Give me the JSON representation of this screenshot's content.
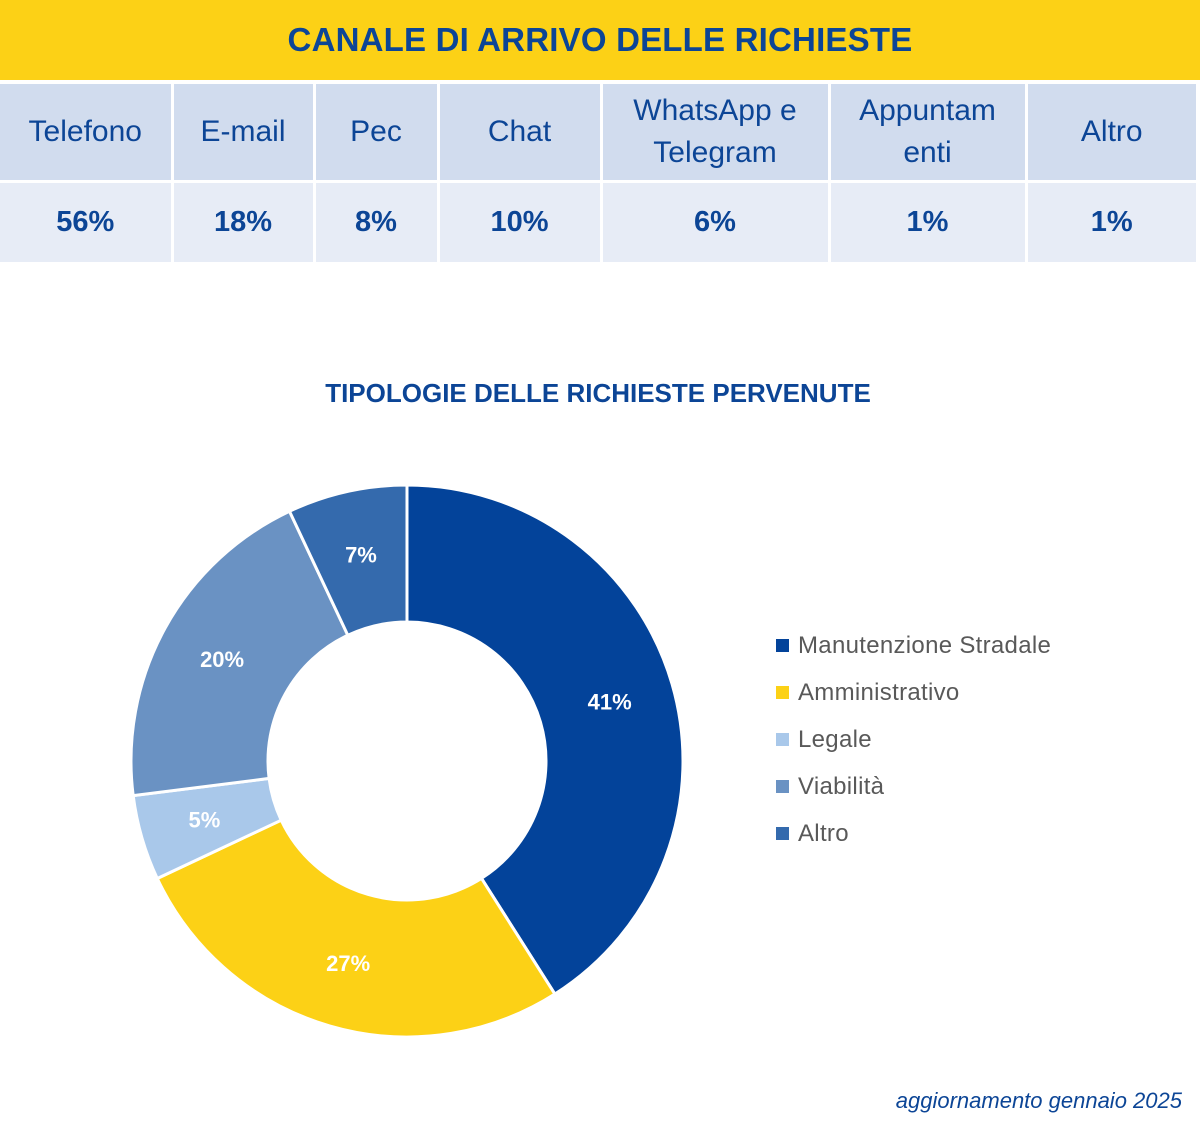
{
  "banner": {
    "title": "CANALE DI ARRIVO DELLE RICHIESTE"
  },
  "channels_table": {
    "headers": [
      "Telefono",
      "E-mail",
      "Pec",
      "Chat",
      "WhatsApp e Telegram",
      "Appuntam enti",
      "Altro"
    ],
    "values": [
      "56%",
      "18%",
      "8%",
      "10%",
      "6%",
      "1%",
      "1%"
    ]
  },
  "colors": {
    "accent_yellow": "#fcd116",
    "brand_blue": "#0c4596",
    "header_cell": "#d1dcee",
    "value_cell": "#e7ecf6"
  },
  "chart_data": {
    "type": "pie",
    "title": "TIPOLOGIE DELLE RICHIESTE PERVENUTE",
    "variant": "donut",
    "legend_position": "right",
    "slices": [
      {
        "label": "Manutenzione Stradale",
        "value": 41,
        "display": "41%",
        "color": "#03439a"
      },
      {
        "label": "Amministrativo",
        "value": 27,
        "display": "27%",
        "color": "#fcd116"
      },
      {
        "label": "Legale",
        "value": 5,
        "display": "5%",
        "color": "#a9c8ea"
      },
      {
        "label": "Viabilità",
        "value": 20,
        "display": "20%",
        "color": "#6a92c3"
      },
      {
        "label": "Altro",
        "value": 7,
        "display": "7%",
        "color": "#346aad"
      }
    ]
  },
  "footnote": "aggiornamento gennaio 2025"
}
